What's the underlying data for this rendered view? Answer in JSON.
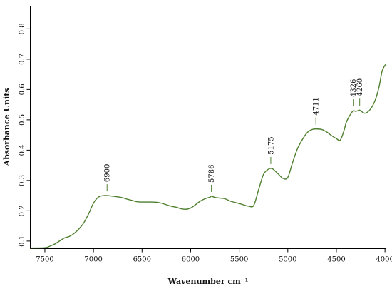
{
  "chart_data": {
    "type": "line",
    "title": "",
    "xlabel": "Wavenumber cm⁻¹",
    "ylabel": "Absorbance Units",
    "xlim": [
      7650,
      3990
    ],
    "ylim": [
      0.075,
      0.875
    ],
    "x_reversed": true,
    "grid": false,
    "legend": "none",
    "x_ticks": [
      7500,
      7000,
      6500,
      6000,
      5500,
      5000,
      4500,
      4000
    ],
    "y_ticks": [
      0.1,
      0.2,
      0.3,
      0.4,
      0.5,
      0.6,
      0.7,
      0.8
    ],
    "y_tick_labels": [
      "0.1",
      "0.2",
      "0.3",
      "0.4",
      "0.5",
      "0.6",
      "0.7",
      "0.8"
    ],
    "series": [
      {
        "color": "#4e7f2e",
        "x": [
          7650,
          7500,
          7450,
          7400,
          7350,
          7300,
          7250,
          7200,
          7150,
          7100,
          7050,
          7000,
          6950,
          6900,
          6850,
          6800,
          6750,
          6700,
          6650,
          6600,
          6550,
          6500,
          6450,
          6400,
          6350,
          6300,
          6250,
          6200,
          6150,
          6100,
          6050,
          6000,
          5950,
          5900,
          5850,
          5800,
          5786,
          5750,
          5700,
          5650,
          5600,
          5550,
          5500,
          5450,
          5400,
          5350,
          5300,
          5250,
          5200,
          5175,
          5150,
          5100,
          5050,
          5000,
          4950,
          4900,
          4850,
          4800,
          4750,
          4711,
          4650,
          4600,
          4550,
          4500,
          4460,
          4420,
          4400,
          4370,
          4340,
          4326,
          4300,
          4280,
          4260,
          4230,
          4200,
          4150,
          4100,
          4060,
          4030,
          4000,
          3990
        ],
        "y": [
          0.077,
          0.078,
          0.083,
          0.09,
          0.1,
          0.11,
          0.115,
          0.125,
          0.14,
          0.16,
          0.19,
          0.225,
          0.245,
          0.25,
          0.25,
          0.248,
          0.246,
          0.243,
          0.238,
          0.234,
          0.23,
          0.229,
          0.229,
          0.229,
          0.228,
          0.225,
          0.22,
          0.215,
          0.212,
          0.207,
          0.205,
          0.209,
          0.22,
          0.232,
          0.24,
          0.245,
          0.248,
          0.244,
          0.242,
          0.24,
          0.233,
          0.228,
          0.224,
          0.219,
          0.215,
          0.218,
          0.27,
          0.32,
          0.337,
          0.34,
          0.337,
          0.322,
          0.307,
          0.31,
          0.36,
          0.405,
          0.435,
          0.458,
          0.468,
          0.47,
          0.468,
          0.46,
          0.448,
          0.438,
          0.433,
          0.466,
          0.49,
          0.51,
          0.525,
          0.53,
          0.528,
          0.53,
          0.532,
          0.525,
          0.522,
          0.535,
          0.565,
          0.61,
          0.66,
          0.68,
          0.68
        ]
      }
    ],
    "annotations": [
      {
        "label": "6900",
        "x": 6860,
        "y": 0.25
      },
      {
        "label": "5786",
        "x": 5786,
        "y": 0.248
      },
      {
        "label": "5175",
        "x": 5175,
        "y": 0.34
      },
      {
        "label": "4711",
        "x": 4711,
        "y": 0.47
      },
      {
        "label": "4326",
        "x": 4326,
        "y": 0.53
      },
      {
        "label": "4260",
        "x": 4260,
        "y": 0.532
      }
    ]
  }
}
